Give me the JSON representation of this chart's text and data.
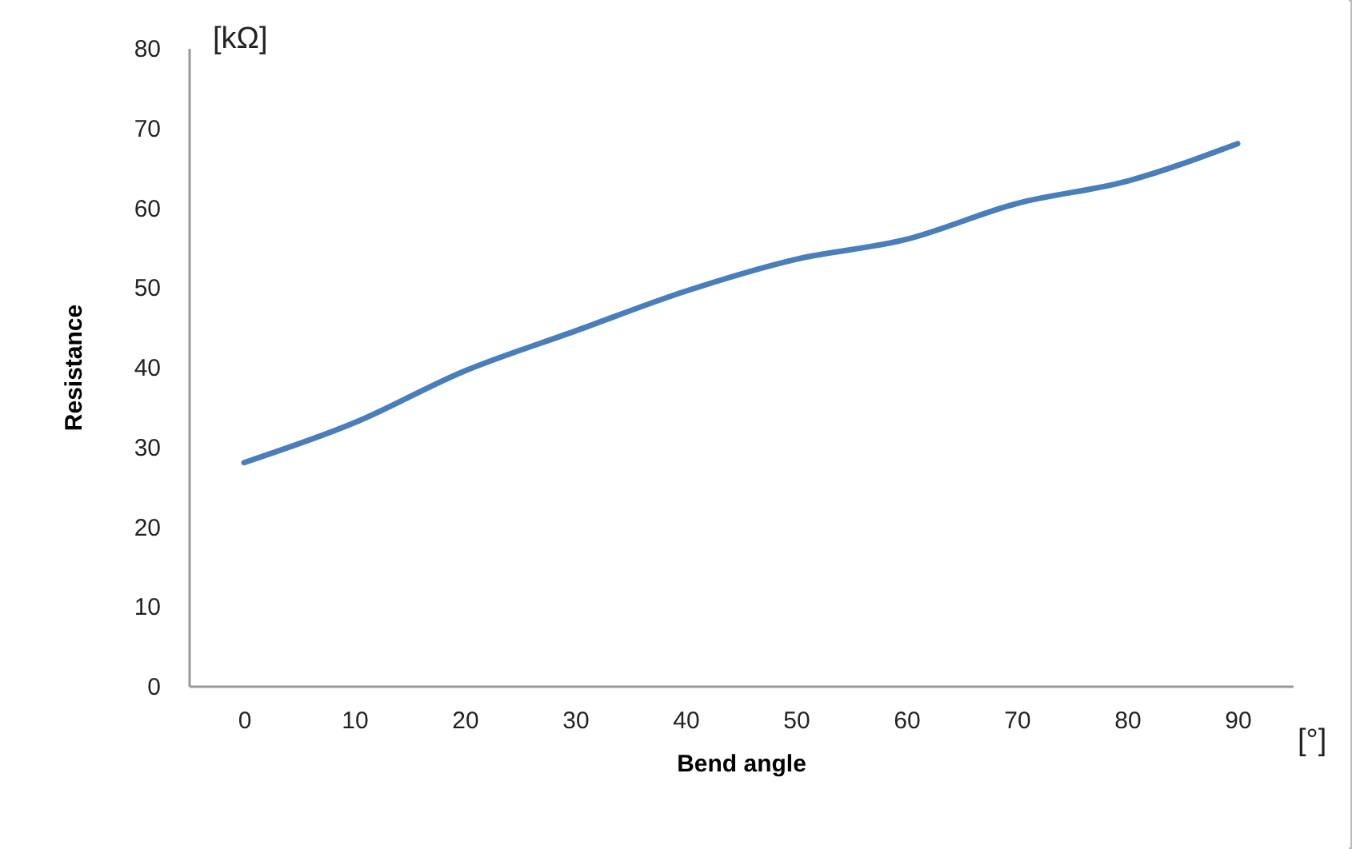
{
  "chart_data": {
    "type": "line",
    "xlabel": "Bend angle",
    "ylabel": "Resistance",
    "annotations": [
      "[kΩ]",
      "[°]"
    ],
    "categories": [
      "0",
      "10",
      "20",
      "30",
      "40",
      "50",
      "60",
      "70",
      "80",
      "90"
    ],
    "series": [
      {
        "color": "#4a7ebb",
        "values": [
          28,
          33,
          39.5,
          44.5,
          49.5,
          53.5,
          56,
          60.5,
          63.3,
          68
        ]
      }
    ],
    "ylim": [
      0,
      80
    ],
    "yticks": [
      0,
      10,
      20,
      30,
      40,
      50,
      60,
      70,
      80
    ],
    "grid": false,
    "legend": false,
    "marker": "none",
    "line_style": "solid"
  }
}
